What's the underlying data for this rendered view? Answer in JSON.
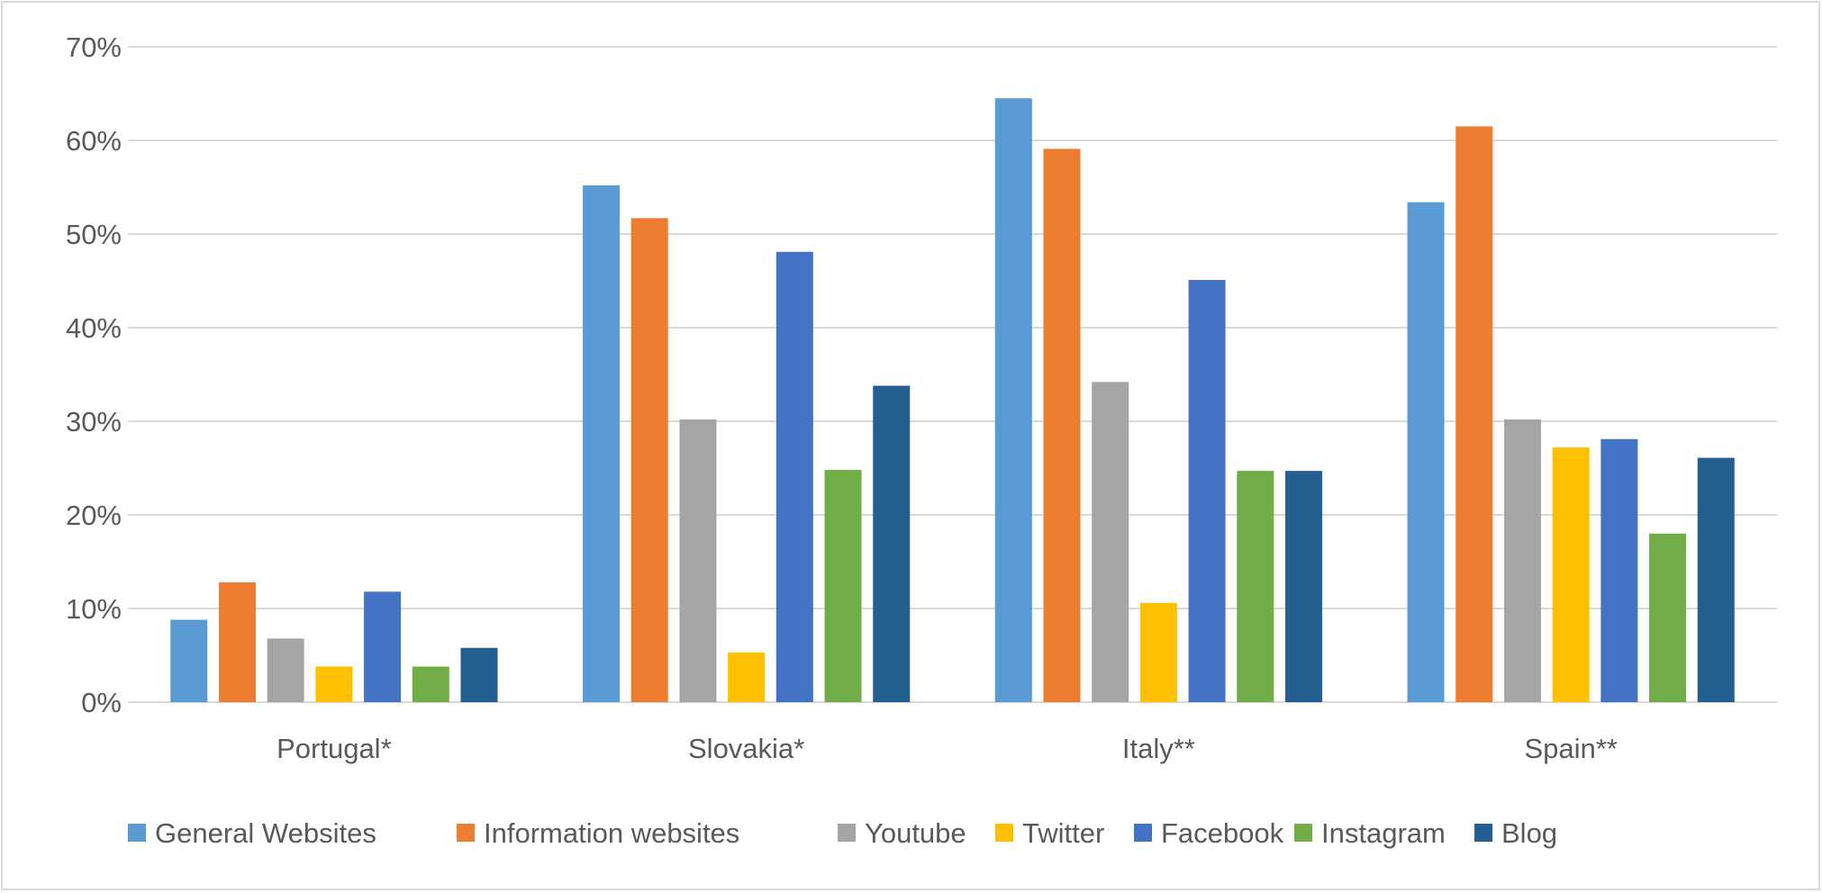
{
  "chart_data": {
    "type": "bar",
    "title": "",
    "xlabel": "",
    "ylabel": "",
    "ylim": [
      0,
      70
    ],
    "yticks": [
      "0%",
      "10%",
      "20%",
      "30%",
      "40%",
      "50%",
      "60%",
      "70%"
    ],
    "grid": true,
    "legend_position": "bottom",
    "categories": [
      "Portugal*",
      "Slovakia*",
      "Italy**",
      "Spain**"
    ],
    "series": [
      {
        "name": "General Websites",
        "color": "#5b9bd5",
        "values": [
          8.8,
          55.2,
          64.5,
          53.4
        ]
      },
      {
        "name": "Information websites",
        "color": "#ed7d31",
        "values": [
          12.8,
          51.7,
          59.1,
          61.5
        ]
      },
      {
        "name": "Youtube",
        "color": "#a5a5a5",
        "values": [
          6.8,
          30.2,
          34.2,
          30.2
        ]
      },
      {
        "name": "Twitter",
        "color": "#ffc000",
        "values": [
          3.8,
          5.3,
          10.6,
          27.2
        ]
      },
      {
        "name": "Facebook",
        "color": "#4472c4",
        "values": [
          11.8,
          48.1,
          45.1,
          28.1
        ]
      },
      {
        "name": "Instagram",
        "color": "#70ad47",
        "values": [
          3.8,
          24.8,
          24.7,
          18.0
        ]
      },
      {
        "name": "Blog",
        "color": "#255e91",
        "values": [
          5.8,
          33.8,
          24.7,
          26.1
        ]
      }
    ]
  }
}
